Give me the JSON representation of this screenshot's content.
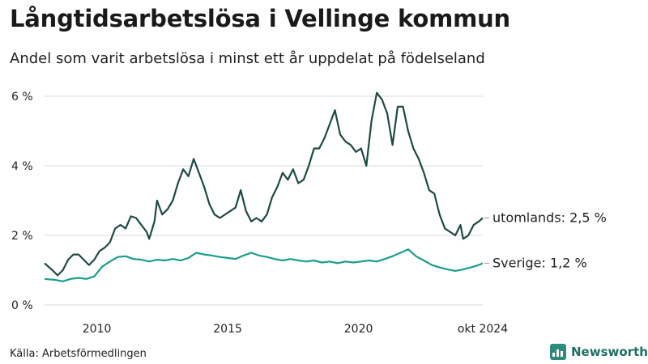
{
  "title": "Långtidsarbetslösa i Vellinge kommun",
  "subtitle": "Andel som varit arbetslösa i minst ett år uppdelat på födelseland",
  "source": "Källa: Arbetsförmedlingen",
  "brand": "Newsworthy",
  "colors": {
    "utomlands": "#1e4a45",
    "sverige": "#1a9e8c",
    "grid": "#d9d9d9",
    "brand": "#2d8a7e"
  },
  "chart_data": {
    "type": "line",
    "title": "Långtidsarbetslösa i Vellinge kommun",
    "ylim": [
      0,
      6.2
    ],
    "y_ticks": [
      0,
      2,
      4,
      6
    ],
    "y_tick_labels": [
      "0 %",
      "2 %",
      "4 %",
      "6 %"
    ],
    "x_ticks": [
      2010,
      2015,
      2020,
      2024.75
    ],
    "x_tick_labels": [
      "2010",
      "2015",
      "2020",
      "okt 2024"
    ],
    "xlim": [
      2008.0,
      2024.75
    ],
    "grid": true,
    "series": [
      {
        "name": "utomlands",
        "end_label": "utomlands: 2,5 %",
        "points": [
          [
            2008.0,
            1.2
          ],
          [
            2008.3,
            1.0
          ],
          [
            2008.5,
            0.85
          ],
          [
            2008.7,
            1.0
          ],
          [
            2008.9,
            1.3
          ],
          [
            2009.1,
            1.45
          ],
          [
            2009.3,
            1.45
          ],
          [
            2009.5,
            1.3
          ],
          [
            2009.7,
            1.15
          ],
          [
            2009.9,
            1.3
          ],
          [
            2010.1,
            1.55
          ],
          [
            2010.3,
            1.65
          ],
          [
            2010.5,
            1.8
          ],
          [
            2010.7,
            2.2
          ],
          [
            2010.9,
            2.3
          ],
          [
            2011.1,
            2.2
          ],
          [
            2011.3,
            2.55
          ],
          [
            2011.5,
            2.5
          ],
          [
            2011.7,
            2.3
          ],
          [
            2011.9,
            2.1
          ],
          [
            2012.0,
            1.9
          ],
          [
            2012.2,
            2.4
          ],
          [
            2012.3,
            3.0
          ],
          [
            2012.5,
            2.6
          ],
          [
            2012.7,
            2.75
          ],
          [
            2012.9,
            3.0
          ],
          [
            2013.1,
            3.5
          ],
          [
            2013.3,
            3.9
          ],
          [
            2013.5,
            3.7
          ],
          [
            2013.7,
            4.2
          ],
          [
            2013.9,
            3.8
          ],
          [
            2014.1,
            3.4
          ],
          [
            2014.3,
            2.9
          ],
          [
            2014.5,
            2.6
          ],
          [
            2014.7,
            2.5
          ],
          [
            2014.9,
            2.6
          ],
          [
            2015.1,
            2.7
          ],
          [
            2015.3,
            2.8
          ],
          [
            2015.5,
            3.3
          ],
          [
            2015.7,
            2.7
          ],
          [
            2015.9,
            2.4
          ],
          [
            2016.1,
            2.5
          ],
          [
            2016.3,
            2.4
          ],
          [
            2016.5,
            2.6
          ],
          [
            2016.7,
            3.1
          ],
          [
            2016.9,
            3.4
          ],
          [
            2017.1,
            3.8
          ],
          [
            2017.3,
            3.6
          ],
          [
            2017.5,
            3.9
          ],
          [
            2017.7,
            3.5
          ],
          [
            2017.9,
            3.6
          ],
          [
            2018.1,
            4.0
          ],
          [
            2018.3,
            4.5
          ],
          [
            2018.5,
            4.5
          ],
          [
            2018.7,
            4.8
          ],
          [
            2018.9,
            5.2
          ],
          [
            2019.1,
            5.6
          ],
          [
            2019.3,
            4.9
          ],
          [
            2019.5,
            4.7
          ],
          [
            2019.7,
            4.6
          ],
          [
            2019.9,
            4.4
          ],
          [
            2020.1,
            4.5
          ],
          [
            2020.3,
            4.0
          ],
          [
            2020.5,
            5.3
          ],
          [
            2020.7,
            6.1
          ],
          [
            2020.9,
            5.9
          ],
          [
            2021.1,
            5.5
          ],
          [
            2021.3,
            4.6
          ],
          [
            2021.5,
            5.7
          ],
          [
            2021.7,
            5.7
          ],
          [
            2021.9,
            5.0
          ],
          [
            2022.1,
            4.5
          ],
          [
            2022.3,
            4.2
          ],
          [
            2022.5,
            3.8
          ],
          [
            2022.7,
            3.3
          ],
          [
            2022.9,
            3.2
          ],
          [
            2023.1,
            2.6
          ],
          [
            2023.3,
            2.2
          ],
          [
            2023.5,
            2.1
          ],
          [
            2023.7,
            2.0
          ],
          [
            2023.9,
            2.3
          ],
          [
            2024.0,
            1.9
          ],
          [
            2024.2,
            2.0
          ],
          [
            2024.4,
            2.3
          ],
          [
            2024.6,
            2.4
          ],
          [
            2024.75,
            2.5
          ]
        ]
      },
      {
        "name": "Sverige",
        "end_label": "Sverige: 1,2 %",
        "points": [
          [
            2008.0,
            0.75
          ],
          [
            2008.4,
            0.72
          ],
          [
            2008.7,
            0.68
          ],
          [
            2009.0,
            0.75
          ],
          [
            2009.3,
            0.78
          ],
          [
            2009.6,
            0.75
          ],
          [
            2009.9,
            0.82
          ],
          [
            2010.2,
            1.1
          ],
          [
            2010.5,
            1.25
          ],
          [
            2010.8,
            1.38
          ],
          [
            2011.1,
            1.4
          ],
          [
            2011.4,
            1.32
          ],
          [
            2011.7,
            1.3
          ],
          [
            2012.0,
            1.25
          ],
          [
            2012.3,
            1.3
          ],
          [
            2012.6,
            1.28
          ],
          [
            2012.9,
            1.32
          ],
          [
            2013.2,
            1.28
          ],
          [
            2013.5,
            1.35
          ],
          [
            2013.8,
            1.5
          ],
          [
            2014.1,
            1.45
          ],
          [
            2014.4,
            1.42
          ],
          [
            2014.7,
            1.38
          ],
          [
            2015.0,
            1.35
          ],
          [
            2015.3,
            1.32
          ],
          [
            2015.6,
            1.42
          ],
          [
            2015.9,
            1.5
          ],
          [
            2016.2,
            1.42
          ],
          [
            2016.5,
            1.38
          ],
          [
            2016.8,
            1.32
          ],
          [
            2017.1,
            1.28
          ],
          [
            2017.4,
            1.32
          ],
          [
            2017.7,
            1.28
          ],
          [
            2018.0,
            1.25
          ],
          [
            2018.3,
            1.28
          ],
          [
            2018.6,
            1.22
          ],
          [
            2018.9,
            1.25
          ],
          [
            2019.2,
            1.2
          ],
          [
            2019.5,
            1.25
          ],
          [
            2019.8,
            1.22
          ],
          [
            2020.1,
            1.25
          ],
          [
            2020.4,
            1.28
          ],
          [
            2020.7,
            1.25
          ],
          [
            2021.0,
            1.32
          ],
          [
            2021.3,
            1.4
          ],
          [
            2021.6,
            1.5
          ],
          [
            2021.9,
            1.6
          ],
          [
            2022.2,
            1.4
          ],
          [
            2022.5,
            1.28
          ],
          [
            2022.8,
            1.15
          ],
          [
            2023.1,
            1.08
          ],
          [
            2023.4,
            1.02
          ],
          [
            2023.7,
            0.98
          ],
          [
            2024.0,
            1.02
          ],
          [
            2024.3,
            1.08
          ],
          [
            2024.6,
            1.15
          ],
          [
            2024.75,
            1.2
          ]
        ]
      }
    ]
  }
}
